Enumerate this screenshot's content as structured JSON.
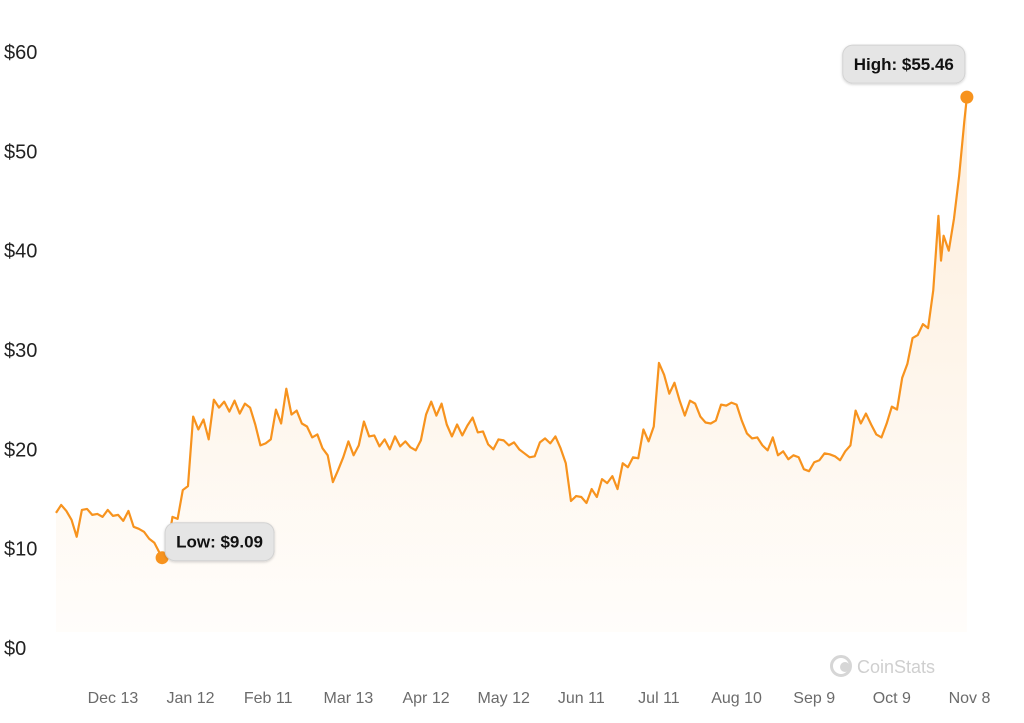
{
  "chart_data": {
    "type": "area",
    "title": "",
    "xlabel": "",
    "ylabel": "",
    "ylim": [
      0,
      60
    ],
    "yticks": [
      {
        "value": 0,
        "label": "$0"
      },
      {
        "value": 10,
        "label": "$10"
      },
      {
        "value": 20,
        "label": "$20"
      },
      {
        "value": 30,
        "label": "$30"
      },
      {
        "value": 40,
        "label": "$40"
      },
      {
        "value": 50,
        "label": "$50"
      },
      {
        "value": 60,
        "label": "$60"
      }
    ],
    "xlim": [
      "2023-11-21",
      "2024-11-14"
    ],
    "xticks": [
      {
        "date": "2023-12-13",
        "label": "Dec 13"
      },
      {
        "date": "2024-01-12",
        "label": "Jan 12"
      },
      {
        "date": "2024-02-11",
        "label": "Feb 11"
      },
      {
        "date": "2024-03-13",
        "label": "Mar 13"
      },
      {
        "date": "2024-04-12",
        "label": "Apr 12"
      },
      {
        "date": "2024-05-12",
        "label": "May 12"
      },
      {
        "date": "2024-06-11",
        "label": "Jun 11"
      },
      {
        "date": "2024-07-11",
        "label": "Jul 11"
      },
      {
        "date": "2024-08-10",
        "label": "Aug 10"
      },
      {
        "date": "2024-09-09",
        "label": "Sep 9"
      },
      {
        "date": "2024-10-09",
        "label": "Oct 9"
      },
      {
        "date": "2024-11-08",
        "label": "Nov 8"
      }
    ],
    "grid": false,
    "line_color": "#f7931e",
    "series": [
      {
        "points": [
          [
            "2023-11-21",
            13.6
          ],
          [
            "2023-11-23",
            14.4
          ],
          [
            "2023-11-25",
            13.8
          ],
          [
            "2023-11-27",
            12.9
          ],
          [
            "2023-11-29",
            11.2
          ],
          [
            "2023-12-01",
            13.9
          ],
          [
            "2023-12-03",
            14.0
          ],
          [
            "2023-12-05",
            13.4
          ],
          [
            "2023-12-07",
            13.5
          ],
          [
            "2023-12-09",
            13.2
          ],
          [
            "2023-12-11",
            13.9
          ],
          [
            "2023-12-13",
            13.3
          ],
          [
            "2023-12-15",
            13.4
          ],
          [
            "2023-12-17",
            12.8
          ],
          [
            "2023-12-19",
            13.8
          ],
          [
            "2023-12-21",
            12.2
          ],
          [
            "2023-12-23",
            12.0
          ],
          [
            "2023-12-25",
            11.7
          ],
          [
            "2023-12-27",
            11.0
          ],
          [
            "2023-12-29",
            10.6
          ],
          [
            "2024-01-01",
            9.09
          ],
          [
            "2024-01-03",
            9.8
          ],
          [
            "2024-01-05",
            13.2
          ],
          [
            "2024-01-07",
            13.0
          ],
          [
            "2024-01-09",
            15.9
          ],
          [
            "2024-01-11",
            16.3
          ],
          [
            "2024-01-13",
            23.3
          ],
          [
            "2024-01-15",
            22.0
          ],
          [
            "2024-01-17",
            23.0
          ],
          [
            "2024-01-19",
            21.0
          ],
          [
            "2024-01-21",
            25.0
          ],
          [
            "2024-01-23",
            24.2
          ],
          [
            "2024-01-25",
            24.8
          ],
          [
            "2024-01-27",
            23.8
          ],
          [
            "2024-01-29",
            24.9
          ],
          [
            "2024-01-31",
            23.6
          ],
          [
            "2024-02-02",
            24.6
          ],
          [
            "2024-02-04",
            24.2
          ],
          [
            "2024-02-06",
            22.5
          ],
          [
            "2024-02-08",
            20.4
          ],
          [
            "2024-02-10",
            20.6
          ],
          [
            "2024-02-12",
            21.0
          ],
          [
            "2024-02-14",
            24.0
          ],
          [
            "2024-02-16",
            22.6
          ],
          [
            "2024-02-18",
            26.1
          ],
          [
            "2024-02-20",
            23.5
          ],
          [
            "2024-02-22",
            23.9
          ],
          [
            "2024-02-24",
            22.6
          ],
          [
            "2024-02-26",
            22.3
          ],
          [
            "2024-02-28",
            21.2
          ],
          [
            "2024-03-01",
            21.5
          ],
          [
            "2024-03-03",
            20.1
          ],
          [
            "2024-03-05",
            19.4
          ],
          [
            "2024-03-07",
            16.7
          ],
          [
            "2024-03-09",
            17.9
          ],
          [
            "2024-03-11",
            19.2
          ],
          [
            "2024-03-13",
            20.8
          ],
          [
            "2024-03-15",
            19.4
          ],
          [
            "2024-03-17",
            20.4
          ],
          [
            "2024-03-19",
            22.8
          ],
          [
            "2024-03-21",
            21.3
          ],
          [
            "2024-03-23",
            21.4
          ],
          [
            "2024-03-25",
            20.3
          ],
          [
            "2024-03-27",
            21.0
          ],
          [
            "2024-03-29",
            20.0
          ],
          [
            "2024-03-31",
            21.3
          ],
          [
            "2024-04-02",
            20.3
          ],
          [
            "2024-04-04",
            20.8
          ],
          [
            "2024-04-06",
            20.2
          ],
          [
            "2024-04-08",
            19.9
          ],
          [
            "2024-04-10",
            20.9
          ],
          [
            "2024-04-12",
            23.5
          ],
          [
            "2024-04-14",
            24.8
          ],
          [
            "2024-04-16",
            23.4
          ],
          [
            "2024-04-18",
            24.6
          ],
          [
            "2024-04-20",
            22.5
          ],
          [
            "2024-04-22",
            21.3
          ],
          [
            "2024-04-24",
            22.5
          ],
          [
            "2024-04-26",
            21.4
          ],
          [
            "2024-04-28",
            22.4
          ],
          [
            "2024-04-30",
            23.2
          ],
          [
            "2024-05-02",
            21.7
          ],
          [
            "2024-05-04",
            21.8
          ],
          [
            "2024-05-06",
            20.5
          ],
          [
            "2024-05-08",
            20.0
          ],
          [
            "2024-05-10",
            21.0
          ],
          [
            "2024-05-12",
            20.9
          ],
          [
            "2024-05-14",
            20.4
          ],
          [
            "2024-05-16",
            20.7
          ],
          [
            "2024-05-18",
            20.0
          ],
          [
            "2024-05-20",
            19.6
          ],
          [
            "2024-05-22",
            19.2
          ],
          [
            "2024-05-24",
            19.3
          ],
          [
            "2024-05-26",
            20.7
          ],
          [
            "2024-05-28",
            21.1
          ],
          [
            "2024-05-30",
            20.6
          ],
          [
            "2024-06-01",
            21.3
          ],
          [
            "2024-06-03",
            20.1
          ],
          [
            "2024-06-05",
            18.6
          ],
          [
            "2024-06-07",
            14.8
          ],
          [
            "2024-06-09",
            15.3
          ],
          [
            "2024-06-11",
            15.2
          ],
          [
            "2024-06-13",
            14.6
          ],
          [
            "2024-06-15",
            16.0
          ],
          [
            "2024-06-17",
            15.2
          ],
          [
            "2024-06-19",
            17.0
          ],
          [
            "2024-06-21",
            16.6
          ],
          [
            "2024-06-23",
            17.3
          ],
          [
            "2024-06-25",
            16.0
          ],
          [
            "2024-06-27",
            18.6
          ],
          [
            "2024-06-29",
            18.2
          ],
          [
            "2024-07-01",
            19.2
          ],
          [
            "2024-07-03",
            19.1
          ],
          [
            "2024-07-05",
            22.0
          ],
          [
            "2024-07-07",
            20.8
          ],
          [
            "2024-07-09",
            22.3
          ],
          [
            "2024-07-11",
            28.7
          ],
          [
            "2024-07-13",
            27.5
          ],
          [
            "2024-07-15",
            25.6
          ],
          [
            "2024-07-17",
            26.7
          ],
          [
            "2024-07-19",
            24.9
          ],
          [
            "2024-07-21",
            23.4
          ],
          [
            "2024-07-23",
            24.9
          ],
          [
            "2024-07-25",
            24.6
          ],
          [
            "2024-07-27",
            23.3
          ],
          [
            "2024-07-29",
            22.7
          ],
          [
            "2024-07-31",
            22.6
          ],
          [
            "2024-08-02",
            22.9
          ],
          [
            "2024-08-04",
            24.5
          ],
          [
            "2024-08-06",
            24.4
          ],
          [
            "2024-08-08",
            24.7
          ],
          [
            "2024-08-10",
            24.5
          ],
          [
            "2024-08-12",
            22.9
          ],
          [
            "2024-08-14",
            21.6
          ],
          [
            "2024-08-16",
            21.1
          ],
          [
            "2024-08-18",
            21.2
          ],
          [
            "2024-08-20",
            20.4
          ],
          [
            "2024-08-22",
            19.9
          ],
          [
            "2024-08-24",
            21.2
          ],
          [
            "2024-08-26",
            19.4
          ],
          [
            "2024-08-28",
            19.8
          ],
          [
            "2024-08-30",
            19.0
          ],
          [
            "2024-09-01",
            19.4
          ],
          [
            "2024-09-03",
            19.2
          ],
          [
            "2024-09-05",
            18.0
          ],
          [
            "2024-09-07",
            17.8
          ],
          [
            "2024-09-09",
            18.7
          ],
          [
            "2024-09-11",
            18.9
          ],
          [
            "2024-09-13",
            19.6
          ],
          [
            "2024-09-15",
            19.5
          ],
          [
            "2024-09-17",
            19.3
          ],
          [
            "2024-09-19",
            18.9
          ],
          [
            "2024-09-21",
            19.8
          ],
          [
            "2024-09-23",
            20.4
          ],
          [
            "2024-09-25",
            23.9
          ],
          [
            "2024-09-27",
            22.6
          ],
          [
            "2024-09-29",
            23.6
          ],
          [
            "2024-10-01",
            22.5
          ],
          [
            "2024-10-03",
            21.5
          ],
          [
            "2024-10-05",
            21.2
          ],
          [
            "2024-10-07",
            22.6
          ],
          [
            "2024-10-09",
            24.3
          ],
          [
            "2024-10-11",
            24.0
          ],
          [
            "2024-10-13",
            27.2
          ],
          [
            "2024-10-15",
            28.6
          ],
          [
            "2024-10-17",
            31.2
          ],
          [
            "2024-10-19",
            31.5
          ],
          [
            "2024-10-21",
            32.6
          ],
          [
            "2024-10-23",
            32.2
          ],
          [
            "2024-10-25",
            36.0
          ],
          [
            "2024-10-27",
            43.5
          ],
          [
            "2024-10-28",
            39.0
          ],
          [
            "2024-10-29",
            41.5
          ],
          [
            "2024-10-31",
            40.0
          ],
          [
            "2024-11-02",
            43.2
          ],
          [
            "2024-11-04",
            47.5
          ],
          [
            "2024-11-06",
            53.0
          ],
          [
            "2024-11-07",
            55.46
          ]
        ]
      }
    ],
    "annotations": [
      {
        "label": "Low: $9.09",
        "date": "2024-01-01",
        "value": 9.09
      },
      {
        "label": "High: $55.46",
        "date": "2024-11-07",
        "value": 55.46
      }
    ]
  },
  "watermark": {
    "text": "CoinStats",
    "icon": "coinstats-logo-icon"
  }
}
